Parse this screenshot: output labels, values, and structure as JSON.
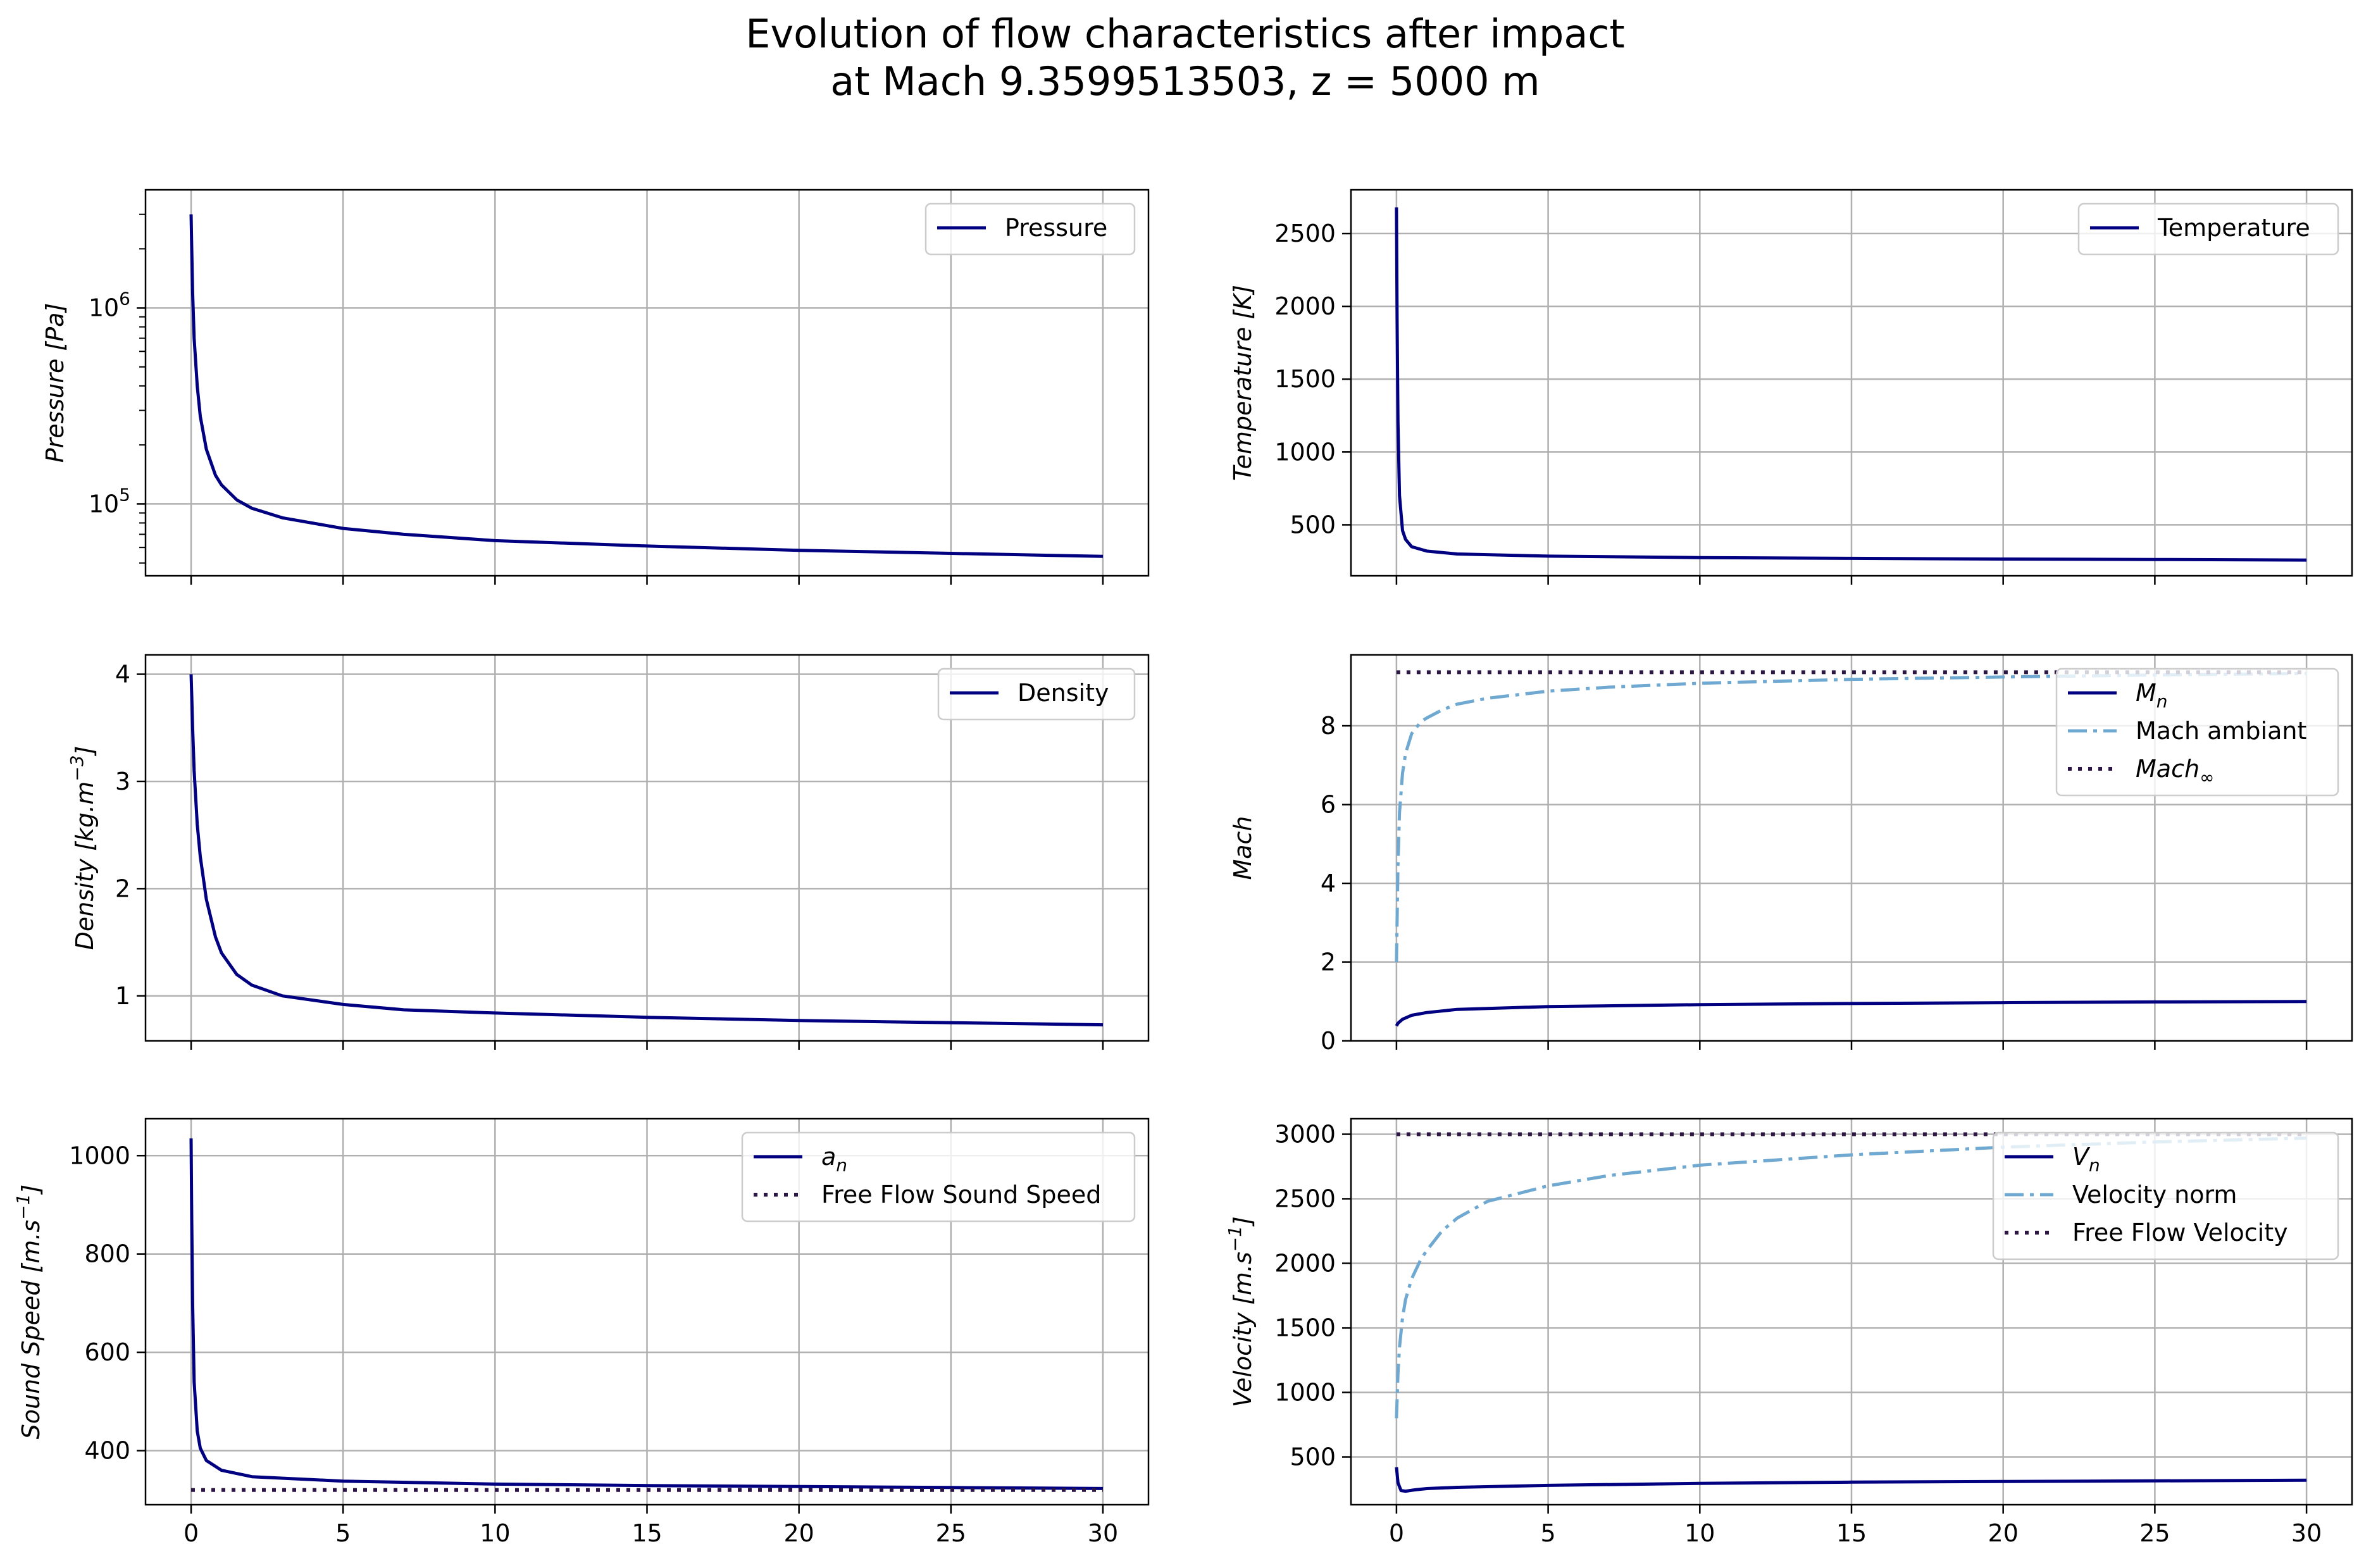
{
  "figure": {
    "title_line1": "Evolution of flow characteristics after impact",
    "title_line2": "at Mach 9.3599513503, z = 5000 m"
  },
  "colors": {
    "navy": "#000080",
    "lightblue": "#6fa8d0",
    "dark": "#2b1646",
    "grid": "#b0b0b0"
  },
  "chart_data": [
    {
      "id": "pressure",
      "type": "line",
      "ylabel": "Pressure [Pa]",
      "yscale": "log",
      "xlim": [
        -1.5,
        31.5
      ],
      "ylim": [
        43000,
        4000000
      ],
      "xticks": [
        0,
        5,
        10,
        15,
        20,
        25,
        30
      ],
      "show_xticklabels": false,
      "yticks": [
        {
          "value": 100000,
          "label_base": "10",
          "label_exp": "5"
        },
        {
          "value": 1000000,
          "label_base": "10",
          "label_exp": "6"
        }
      ],
      "grid": true,
      "legend_position": "upper right",
      "series": [
        {
          "name": "Pressure",
          "style": "solid",
          "color": "#000080",
          "x": [
            0,
            0.02,
            0.05,
            0.1,
            0.2,
            0.3,
            0.5,
            0.8,
            1,
            1.5,
            2,
            3,
            5,
            7,
            10,
            15,
            20,
            25,
            30
          ],
          "y": [
            3000000,
            2000000,
            1200000,
            700000,
            400000,
            280000,
            190000,
            140000,
            125000,
            105000,
            95000,
            85000,
            75000,
            70000,
            65000,
            61000,
            58000,
            56000,
            54000
          ]
        }
      ]
    },
    {
      "id": "temperature",
      "type": "line",
      "ylabel": "Temperature [K]",
      "yscale": "linear",
      "xlim": [
        -1.5,
        31.5
      ],
      "ylim": [
        150,
        2800
      ],
      "xticks": [
        0,
        5,
        10,
        15,
        20,
        25,
        30
      ],
      "show_xticklabels": false,
      "yticks": [
        {
          "value": 500,
          "label": "500"
        },
        {
          "value": 1000,
          "label": "1000"
        },
        {
          "value": 1500,
          "label": "1500"
        },
        {
          "value": 2000,
          "label": "2000"
        },
        {
          "value": 2500,
          "label": "2500"
        }
      ],
      "grid": true,
      "legend_position": "upper right",
      "series": [
        {
          "name": "Temperature",
          "style": "solid",
          "color": "#000080",
          "x": [
            0,
            0.02,
            0.05,
            0.1,
            0.2,
            0.3,
            0.5,
            1,
            2,
            5,
            10,
            15,
            20,
            25,
            30
          ],
          "y": [
            2680,
            1900,
            1200,
            700,
            460,
            400,
            350,
            320,
            300,
            285,
            275,
            270,
            265,
            262,
            258
          ]
        }
      ]
    },
    {
      "id": "density",
      "type": "line",
      "ylabel_parts": [
        "Density [kg.m",
        "−3",
        "]"
      ],
      "yscale": "linear",
      "xlim": [
        -1.5,
        31.5
      ],
      "ylim": [
        0.58,
        4.18
      ],
      "xticks": [
        0,
        5,
        10,
        15,
        20,
        25,
        30
      ],
      "show_xticklabels": false,
      "yticks": [
        {
          "value": 1,
          "label": "1"
        },
        {
          "value": 2,
          "label": "2"
        },
        {
          "value": 3,
          "label": "3"
        },
        {
          "value": 4,
          "label": "4"
        }
      ],
      "grid": true,
      "legend_position": "upper right",
      "series": [
        {
          "name": "Density",
          "style": "solid",
          "color": "#000080",
          "x": [
            0,
            0.02,
            0.05,
            0.1,
            0.2,
            0.3,
            0.5,
            0.8,
            1,
            1.5,
            2,
            3,
            5,
            7,
            10,
            15,
            20,
            25,
            30
          ],
          "y": [
            4.0,
            3.8,
            3.5,
            3.1,
            2.6,
            2.3,
            1.9,
            1.55,
            1.4,
            1.2,
            1.1,
            1.0,
            0.92,
            0.87,
            0.84,
            0.8,
            0.77,
            0.75,
            0.73
          ]
        }
      ]
    },
    {
      "id": "mach",
      "type": "line",
      "ylabel": "Mach",
      "yscale": "linear",
      "xlim": [
        -1.5,
        31.5
      ],
      "ylim": [
        0,
        9.8
      ],
      "xticks": [
        0,
        5,
        10,
        15,
        20,
        25,
        30
      ],
      "show_xticklabels": false,
      "yticks": [
        {
          "value": 0,
          "label": "0"
        },
        {
          "value": 2,
          "label": "2"
        },
        {
          "value": 4,
          "label": "4"
        },
        {
          "value": 6,
          "label": "6"
        },
        {
          "value": 8,
          "label": "8"
        }
      ],
      "grid": true,
      "legend_position": "upper right",
      "series": [
        {
          "name_base": "M",
          "name_sub": "n",
          "style": "solid",
          "color": "#000080",
          "x": [
            0,
            0.05,
            0.2,
            0.5,
            1,
            2,
            5,
            10,
            15,
            20,
            25,
            30
          ],
          "y": [
            0.38,
            0.45,
            0.55,
            0.65,
            0.72,
            0.8,
            0.87,
            0.92,
            0.95,
            0.97,
            0.99,
            1.0
          ]
        },
        {
          "name": "Mach ambiant",
          "style": "dashdot",
          "color": "#6fa8d0",
          "x": [
            0,
            0.05,
            0.1,
            0.2,
            0.3,
            0.5,
            0.8,
            1,
            1.5,
            2,
            3,
            5,
            7,
            10,
            15,
            20,
            25,
            30
          ],
          "y": [
            2.0,
            4.5,
            5.8,
            6.8,
            7.3,
            7.8,
            8.1,
            8.2,
            8.4,
            8.55,
            8.7,
            8.88,
            8.98,
            9.08,
            9.18,
            9.24,
            9.29,
            9.33
          ]
        },
        {
          "name_base": "Mach",
          "name_sub": "∞",
          "style": "dotted",
          "color": "#2b1646",
          "x": [
            0,
            30
          ],
          "y": [
            9.36,
            9.36
          ]
        }
      ]
    },
    {
      "id": "sound_speed",
      "type": "line",
      "ylabel_parts": [
        "Sound Speed [m.s",
        "−1",
        "]"
      ],
      "yscale": "linear",
      "xlim": [
        -1.5,
        31.5
      ],
      "ylim": [
        290,
        1075
      ],
      "xticks": [
        0,
        5,
        10,
        15,
        20,
        25,
        30
      ],
      "show_xticklabels": true,
      "xticklabels": [
        "0",
        "5",
        "10",
        "15",
        "20",
        "25",
        "30"
      ],
      "yticks": [
        {
          "value": 400,
          "label": "400"
        },
        {
          "value": 600,
          "label": "600"
        },
        {
          "value": 800,
          "label": "800"
        },
        {
          "value": 1000,
          "label": "1000"
        }
      ],
      "grid": true,
      "legend_position": "upper right",
      "series": [
        {
          "name_base": "a",
          "name_sub": "n",
          "style": "solid",
          "color": "#000080",
          "x": [
            0,
            0.02,
            0.05,
            0.1,
            0.2,
            0.3,
            0.5,
            1,
            2,
            5,
            10,
            15,
            20,
            25,
            30
          ],
          "y": [
            1035,
            870,
            700,
            540,
            440,
            405,
            380,
            360,
            347,
            338,
            332,
            329,
            327,
            325,
            323
          ]
        },
        {
          "name": "Free Flow Sound Speed",
          "style": "dotted",
          "color": "#2b1646",
          "x": [
            0,
            30
          ],
          "y": [
            320,
            320
          ]
        }
      ]
    },
    {
      "id": "velocity",
      "type": "line",
      "ylabel_parts": [
        "Velocity [m.s",
        "−1",
        "]"
      ],
      "yscale": "linear",
      "xlim": [
        -1.5,
        31.5
      ],
      "ylim": [
        130,
        3120
      ],
      "xticks": [
        0,
        5,
        10,
        15,
        20,
        25,
        30
      ],
      "show_xticklabels": true,
      "xticklabels": [
        "0",
        "5",
        "10",
        "15",
        "20",
        "25",
        "30"
      ],
      "yticks": [
        {
          "value": 500,
          "label": "500"
        },
        {
          "value": 1000,
          "label": "1000"
        },
        {
          "value": 1500,
          "label": "1500"
        },
        {
          "value": 2000,
          "label": "2000"
        },
        {
          "value": 2500,
          "label": "2500"
        },
        {
          "value": 3000,
          "label": "3000"
        }
      ],
      "grid": true,
      "legend_position": "upper right",
      "series": [
        {
          "name_base": "V",
          "name_sub": "n",
          "style": "solid",
          "color": "#000080",
          "x": [
            0,
            0.05,
            0.15,
            0.3,
            0.6,
            1,
            2,
            5,
            10,
            15,
            20,
            25,
            30
          ],
          "y": [
            420,
            300,
            240,
            235,
            245,
            255,
            265,
            280,
            295,
            305,
            310,
            315,
            320
          ]
        },
        {
          "name": "Velocity norm",
          "style": "dashdot",
          "color": "#6fa8d0",
          "x": [
            0,
            0.05,
            0.1,
            0.2,
            0.3,
            0.5,
            0.8,
            1,
            1.5,
            2,
            3,
            5,
            7,
            10,
            15,
            20,
            25,
            30
          ],
          "y": [
            800,
            1150,
            1350,
            1580,
            1720,
            1880,
            2030,
            2100,
            2250,
            2350,
            2480,
            2600,
            2680,
            2760,
            2840,
            2900,
            2940,
            2970
          ]
        },
        {
          "name": "Free Flow Velocity",
          "style": "dotted",
          "color": "#2b1646",
          "x": [
            0,
            30
          ],
          "y": [
            3000,
            3000
          ]
        }
      ]
    }
  ]
}
